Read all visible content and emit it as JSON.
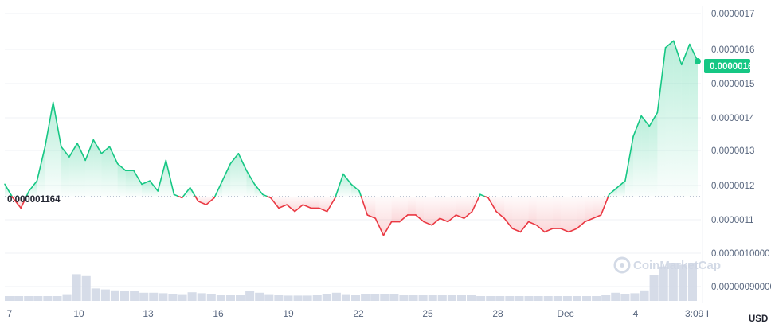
{
  "colors": {
    "up": "#16c784",
    "down": "#ea3943",
    "volume": "#cfd6e4",
    "grid": "#eff2f5",
    "axis_text": "#58667e"
  },
  "watermark": {
    "text": "CoinMarketCap",
    "icon": "coinmarketcap-logo-icon"
  },
  "chart_data": {
    "type": "line",
    "currency": "USD",
    "baseline": {
      "value": 1.164e-06,
      "label": "0.000001164"
    },
    "current_price": {
      "value": 1.6e-06,
      "label": "0.0000016"
    },
    "x_ticks": [
      "7",
      "10",
      "13",
      "16",
      "19",
      "22",
      "25",
      "28",
      "Dec",
      "4",
      "3:09 I"
    ],
    "y_ticks": [
      "0.0000017",
      "0.0000016",
      "0.0000015",
      "0.0000014",
      "0.0000013",
      "0.0000012",
      "0.0000011",
      "0.0000010000",
      "0.00000090000"
    ],
    "ylim": [
      8.7e-07,
      1.72e-06
    ],
    "series": [
      {
        "values": [
          1.2e-06,
          1.16e-06,
          1.13e-06,
          1.18e-06,
          1.21e-06,
          1.31e-06,
          1.44e-06,
          1.31e-06,
          1.28e-06,
          1.32e-06,
          1.27e-06,
          1.33e-06,
          1.29e-06,
          1.31e-06,
          1.26e-06,
          1.24e-06,
          1.24e-06,
          1.2e-06,
          1.21e-06,
          1.18e-06,
          1.27e-06,
          1.17e-06,
          1.16e-06,
          1.19e-06,
          1.15e-06,
          1.14e-06,
          1.16e-06,
          1.21e-06,
          1.26e-06,
          1.29e-06,
          1.24e-06,
          1.2e-06,
          1.17e-06,
          1.16e-06,
          1.13e-06,
          1.14e-06,
          1.12e-06,
          1.14e-06,
          1.13e-06,
          1.13e-06,
          1.12e-06,
          1.16e-06,
          1.23e-06,
          1.2e-06,
          1.18e-06,
          1.11e-06,
          1.1e-06,
          1.05e-06,
          1.09e-06,
          1.09e-06,
          1.11e-06,
          1.11e-06,
          1.09e-06,
          1.08e-06,
          1.1e-06,
          1.09e-06,
          1.11e-06,
          1.1e-06,
          1.12e-06,
          1.17e-06,
          1.16e-06,
          1.12e-06,
          1.1e-06,
          1.07e-06,
          1.06e-06,
          1.09e-06,
          1.08e-06,
          1.06e-06,
          1.07e-06,
          1.07e-06,
          1.06e-06,
          1.07e-06,
          1.09e-06,
          1.1e-06,
          1.11e-06,
          1.17e-06,
          1.19e-06,
          1.21e-06,
          1.34e-06,
          1.4e-06,
          1.37e-06,
          1.41e-06,
          1.6e-06,
          1.62e-06,
          1.55e-06,
          1.61e-06,
          1.56e-06
        ]
      }
    ],
    "volume": [
      0.1,
      0.1,
      0.1,
      0.1,
      0.1,
      0.1,
      0.14,
      0.56,
      0.52,
      0.26,
      0.24,
      0.22,
      0.21,
      0.2,
      0.17,
      0.17,
      0.16,
      0.15,
      0.14,
      0.18,
      0.16,
      0.15,
      0.13,
      0.13,
      0.13,
      0.2,
      0.17,
      0.14,
      0.13,
      0.11,
      0.11,
      0.11,
      0.12,
      0.15,
      0.17,
      0.14,
      0.13,
      0.15,
      0.15,
      0.15,
      0.15,
      0.13,
      0.12,
      0.12,
      0.13,
      0.13,
      0.12,
      0.12,
      0.12,
      0.1,
      0.1,
      0.1,
      0.1,
      0.1,
      0.1,
      0.1,
      0.1,
      0.1,
      0.1,
      0.1,
      0.1,
      0.1,
      0.12,
      0.17,
      0.15,
      0.16,
      0.22,
      0.55,
      0.72,
      0.8,
      0.76,
      0.8
    ]
  }
}
